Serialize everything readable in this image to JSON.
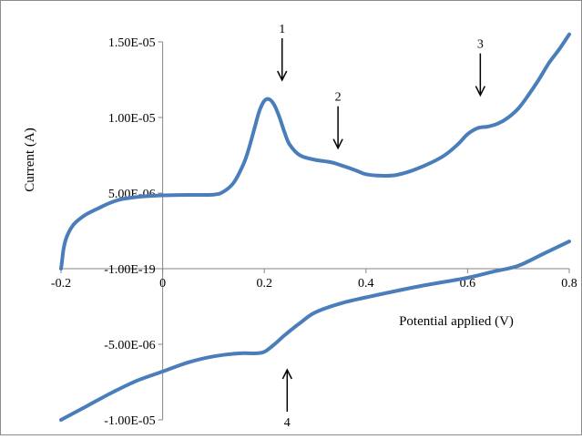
{
  "chart_data": {
    "type": "line",
    "xlabel": "Potential applied (V)",
    "ylabel": "Current (A)",
    "xlim": [
      -0.2,
      0.8
    ],
    "ylim": [
      -1e-05,
      1.5e-05
    ],
    "x_ticks": [
      -0.2,
      0,
      0.2,
      0.4,
      0.6,
      0.8
    ],
    "x_tick_labels": [
      "-0.2",
      "0",
      "0.2",
      "0.4",
      "0.6",
      "0.8"
    ],
    "y_ticks": [
      1.5e-05,
      1e-05,
      5e-06,
      0,
      -5e-06,
      -1e-05
    ],
    "y_tick_labels": [
      "1.50E-05",
      "1.00E-05",
      "5.00E-06",
      "-1.00E-19",
      "-5.00E-06",
      "-1.00E-05"
    ],
    "grid": false,
    "legend": "none",
    "color": "#4a7ebb",
    "series": [
      {
        "x": [
          -0.2,
          -0.198,
          -0.195,
          -0.19,
          -0.18,
          -0.17,
          -0.15,
          -0.12,
          -0.1,
          -0.08,
          -0.05,
          -0.02,
          0,
          0.05,
          0.1,
          0.12,
          0.14,
          0.16,
          0.17,
          0.18,
          0.19,
          0.2,
          0.21,
          0.22,
          0.23,
          0.24,
          0.25,
          0.27,
          0.3,
          0.33,
          0.35,
          0.38,
          0.4,
          0.43,
          0.46,
          0.5,
          0.55,
          0.58,
          0.6,
          0.62,
          0.64,
          0.66,
          0.68,
          0.7,
          0.72,
          0.74,
          0.76,
          0.78,
          0.8
        ],
        "y": [
          0,
          5e-07,
          1.3e-06,
          2e-06,
          2.7e-06,
          3.1e-06,
          3.6e-06,
          4.1e-06,
          4.4e-06,
          4.6e-06,
          4.75e-06,
          4.82e-06,
          4.85e-06,
          4.88e-06,
          4.9e-06,
          5.1e-06,
          5.7e-06,
          7e-06,
          8e-06,
          9.2e-06,
          1.04e-05,
          1.11e-05,
          1.12e-05,
          1.08e-05,
          1e-05,
          9e-06,
          8.2e-06,
          7.5e-06,
          7.2e-06,
          7.05e-06,
          6.85e-06,
          6.5e-06,
          6.25e-06,
          6.15e-06,
          6.2e-06,
          6.6e-06,
          7.4e-06,
          8.2e-06,
          8.9e-06,
          9.3e-06,
          9.4e-06,
          9.6e-06,
          1e-05,
          1.06e-05,
          1.15e-05,
          1.25e-05,
          1.36e-05,
          1.45e-05,
          1.55e-05
        ]
      },
      {
        "x": [
          -0.2,
          -0.15,
          -0.1,
          -0.05,
          0,
          0.05,
          0.1,
          0.15,
          0.18,
          0.2,
          0.22,
          0.24,
          0.27,
          0.3,
          0.35,
          0.4,
          0.5,
          0.6,
          0.65,
          0.7,
          0.75,
          0.8
        ],
        "y": [
          -1e-05,
          -9.1e-06,
          -8.2e-06,
          -7.4e-06,
          -6.8e-06,
          -6.2e-06,
          -5.8e-06,
          -5.6e-06,
          -5.6e-06,
          -5.5e-06,
          -5e-06,
          -4.4e-06,
          -3.6e-06,
          -2.9e-06,
          -2.3e-06,
          -1.9e-06,
          -1.2e-06,
          -6e-07,
          -2e-07,
          2e-07,
          1e-06,
          1.8e-06
        ]
      }
    ],
    "annotations": [
      {
        "text": "1",
        "x": 0.235,
        "y": 1.5e-05,
        "arrow": "down"
      },
      {
        "text": "2",
        "x": 0.345,
        "y": 1.05e-05,
        "arrow": "down"
      },
      {
        "text": "3",
        "x": 0.625,
        "y": 1.4e-05,
        "arrow": "down"
      },
      {
        "text": "4",
        "x": 0.245,
        "y": -1e-05,
        "arrow": "up"
      }
    ]
  }
}
